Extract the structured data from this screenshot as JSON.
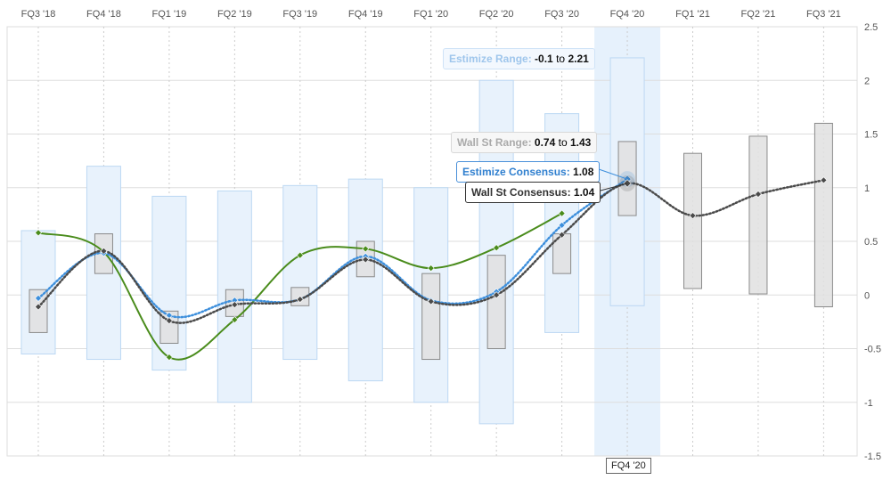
{
  "chart_data": {
    "type": "line",
    "categories": [
      "FQ3 '18",
      "FQ4 '18",
      "FQ1 '19",
      "FQ2 '19",
      "FQ3 '19",
      "FQ4 '19",
      "FQ1 '20",
      "FQ2 '20",
      "FQ3 '20",
      "FQ4 '20",
      "FQ1 '21",
      "FQ2 '21",
      "FQ3 '21"
    ],
    "ylim": [
      -1.5,
      2.5
    ],
    "yticks": [
      -1.5,
      -1,
      -0.5,
      0,
      0.5,
      1,
      1.5,
      2,
      2.5
    ],
    "ytick_labels": [
      "-1.5",
      "-1",
      "-0.5",
      "0",
      "0.5",
      "1",
      "1.5",
      "2",
      "2.5"
    ],
    "grid": true,
    "highlighted_category": "FQ4 '20",
    "estimize_range": [
      [
        -0.55,
        0.6
      ],
      [
        -0.6,
        1.2
      ],
      [
        -0.7,
        0.92
      ],
      [
        -1.0,
        0.97
      ],
      [
        -0.6,
        1.02
      ],
      [
        -0.8,
        1.08
      ],
      [
        -1.0,
        1.0
      ],
      [
        -1.2,
        2.0
      ],
      [
        -0.35,
        1.69
      ],
      [
        -0.1,
        2.21
      ],
      null,
      null,
      null
    ],
    "wallst_range": [
      [
        -0.35,
        0.05
      ],
      [
        0.2,
        0.57
      ],
      [
        -0.45,
        -0.15
      ],
      [
        -0.2,
        0.05
      ],
      [
        -0.1,
        0.07
      ],
      [
        0.17,
        0.5
      ],
      [
        -0.6,
        0.2
      ],
      [
        -0.5,
        0.37
      ],
      [
        0.2,
        0.57
      ],
      [
        0.74,
        1.43
      ],
      [
        0.06,
        1.32
      ],
      [
        0.01,
        1.48
      ],
      [
        -0.11,
        1.6
      ]
    ],
    "series": [
      {
        "key": "actual",
        "color": "#4a8c1c",
        "style": "solid",
        "values": [
          0.58,
          0.4,
          -0.58,
          -0.23,
          0.37,
          0.43,
          0.25,
          0.44,
          0.76,
          null,
          null,
          null,
          null
        ]
      },
      {
        "key": "estimize_consensus",
        "color": "#3d8fdc",
        "style": "dotted",
        "values": [
          -0.03,
          0.39,
          -0.19,
          -0.05,
          -0.04,
          0.36,
          -0.05,
          0.03,
          0.65,
          1.08,
          null,
          null,
          null
        ]
      },
      {
        "key": "wallst_consensus",
        "color": "#4a4a4a",
        "style": "dotted",
        "values": [
          -0.11,
          0.41,
          -0.24,
          -0.09,
          -0.04,
          0.33,
          -0.06,
          0.0,
          0.56,
          1.04,
          0.74,
          0.94,
          1.07
        ]
      }
    ]
  },
  "tooltips": {
    "estimize_range": {
      "label": "Estimize Range:",
      "low": "-0.1",
      "sep": "to",
      "high": "2.21"
    },
    "wallst_range": {
      "label": "Wall St Range:",
      "low": "0.74",
      "sep": "to",
      "high": "1.43"
    },
    "estimize_consensus": {
      "label": "Estimize Consensus:",
      "value": "1.08"
    },
    "wallst_consensus": {
      "label": "Wall St Consensus:",
      "value": "1.04"
    },
    "hover_x_label": "FQ4 '20"
  },
  "colors": {
    "grid": "#dddddd",
    "estimize_fill": "#e8f2fc",
    "estimize_stroke": "#bcd8f3",
    "wallst_fill": "#e0e0e0",
    "wallst_stroke": "#8a8a8a",
    "highlight_band": "#e6f1fc"
  }
}
